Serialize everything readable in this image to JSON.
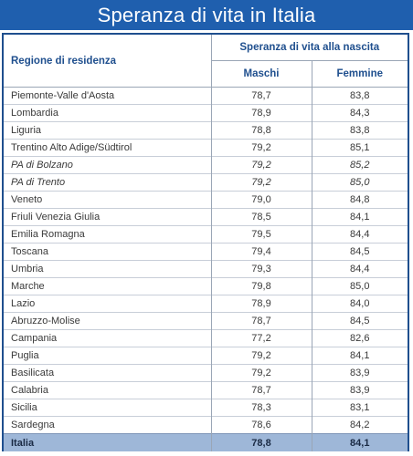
{
  "title": "Speranza di vita in Italia",
  "header": {
    "region_col": "Regione di residenza",
    "group_col": "Speranza di vita alla nascita",
    "male_col": "Maschi",
    "female_col": "Femmine"
  },
  "rows": [
    {
      "region": "Piemonte-Valle d'Aosta",
      "maschi": "78,7",
      "femmine": "83,8"
    },
    {
      "region": "Lombardia",
      "maschi": "78,9",
      "femmine": "84,3"
    },
    {
      "region": "Liguria",
      "maschi": "78,8",
      "femmine": "83,8"
    },
    {
      "region": "Trentino Alto Adige/Südtirol",
      "maschi": "79,2",
      "femmine": "85,1"
    },
    {
      "region": "PA di Bolzano",
      "maschi": "79,2",
      "femmine": "85,2"
    },
    {
      "region": "PA di Trento",
      "maschi": "79,2",
      "femmine": "85,0"
    },
    {
      "region": "Veneto",
      "maschi": "79,0",
      "femmine": "84,8"
    },
    {
      "region": "Friuli Venezia Giulia",
      "maschi": "78,5",
      "femmine": "84,1"
    },
    {
      "region": "Emilia Romagna",
      "maschi": "79,5",
      "femmine": "84,4"
    },
    {
      "region": "Toscana",
      "maschi": "79,4",
      "femmine": "84,5"
    },
    {
      "region": "Umbria",
      "maschi": "79,3",
      "femmine": "84,4"
    },
    {
      "region": "Marche",
      "maschi": "79,8",
      "femmine": "85,0"
    },
    {
      "region": "Lazio",
      "maschi": "78,9",
      "femmine": "84,0"
    },
    {
      "region": "Abruzzo-Molise",
      "maschi": "78,7",
      "femmine": "84,5"
    },
    {
      "region": "Campania",
      "maschi": "77,2",
      "femmine": "82,6"
    },
    {
      "region": "Puglia",
      "maschi": "79,2",
      "femmine": "84,1"
    },
    {
      "region": "Basilicata",
      "maschi": "79,2",
      "femmine": "83,9"
    },
    {
      "region": "Calabria",
      "maschi": "78,7",
      "femmine": "83,9"
    },
    {
      "region": "Sicilia",
      "maschi": "78,3",
      "femmine": "83,1"
    },
    {
      "region": "Sardegna",
      "maschi": "78,6",
      "femmine": "84,2"
    }
  ],
  "total": {
    "region": "Italia",
    "maschi": "78,8",
    "femmine": "84,1"
  }
}
